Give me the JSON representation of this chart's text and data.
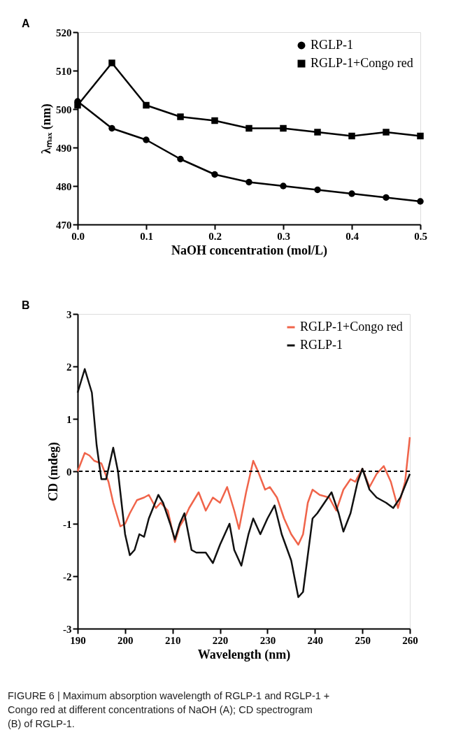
{
  "chart_data": [
    {
      "type": "line",
      "xlabel": "NaOH concentration (mol/L)",
      "ylabel": "λₘₐₓ (nm)",
      "annotations": [
        "A"
      ],
      "x": [
        0,
        0.05,
        0.1,
        0.15,
        0.2,
        0.25,
        0.3,
        0.35,
        0.4,
        0.45,
        0.5
      ],
      "series": [
        {
          "name": "RGLP-1",
          "color": "#000000",
          "marker": "circle",
          "values": [
            502,
            495,
            492,
            487,
            483,
            481,
            480,
            479,
            478,
            477,
            476
          ]
        },
        {
          "name": "RGLP-1+Congo red",
          "color": "#000000",
          "marker": "square",
          "values": [
            501,
            512,
            501,
            498,
            497,
            495,
            495,
            494,
            493,
            494,
            493
          ]
        }
      ],
      "xlim": [
        0,
        0.5
      ],
      "xticks": [
        {
          "value": 0,
          "label": "0.0"
        },
        0.1,
        0.2,
        0.3,
        0.4,
        0.5
      ],
      "ylim": [
        470,
        520
      ],
      "yticks": [
        470,
        480,
        490,
        500,
        510,
        520
      ],
      "grid": false,
      "legend": "top right",
      "line_style": "solid"
    },
    {
      "type": "line",
      "xlabel": "Wavelength (nm)",
      "ylabel": "CD (mdeg)",
      "annotations": [
        "B",
        "FIGURE 6 | Maximum absorption wavelength of RGLP-1 and RGLP-1 + Congo red at different concentrations of NaOH (A); CD spectrogram (B) of RGLP-1."
      ],
      "series": [
        {
          "name": "RGLP-1+Congo red",
          "color": "#f0644a",
          "x": [
            190,
            191.5,
            192.5,
            193.5,
            195,
            196.5,
            197.5,
            199,
            200,
            201,
            202.5,
            204,
            205,
            206.5,
            207.5,
            209,
            210.5,
            211.5,
            212.5,
            213.5,
            215.5,
            217,
            218.5,
            220,
            221.5,
            223,
            224,
            225.5,
            227,
            228,
            229.5,
            230.5,
            232,
            233.5,
            235,
            236.5,
            237.5,
            238.5,
            239.5,
            241,
            243,
            244.5,
            246,
            247.5,
            248.5,
            250,
            251.5,
            253,
            254.5,
            256,
            257.5,
            259,
            260
          ],
          "values": [
            0,
            0.35,
            0.3,
            0.2,
            0.15,
            -0.2,
            -0.6,
            -1.05,
            -1.0,
            -0.8,
            -0.55,
            -0.5,
            -0.45,
            -0.7,
            -0.6,
            -0.75,
            -1.35,
            -1.05,
            -0.9,
            -0.7,
            -0.4,
            -0.75,
            -0.5,
            -0.6,
            -0.3,
            -0.75,
            -1.1,
            -0.4,
            0.2,
            0.0,
            -0.35,
            -0.3,
            -0.5,
            -0.9,
            -1.2,
            -1.4,
            -1.2,
            -0.6,
            -0.35,
            -0.45,
            -0.5,
            -0.75,
            -0.35,
            -0.15,
            -0.2,
            0.05,
            -0.3,
            -0.05,
            0.1,
            -0.2,
            -0.7,
            -0.2,
            0.65
          ]
        },
        {
          "name": "RGLP-1",
          "color": "#111111",
          "x": [
            190,
            191.5,
            193,
            194,
            195,
            196,
            197.5,
            198.5,
            200,
            201,
            202,
            203,
            204,
            205,
            207,
            208,
            209.5,
            210.5,
            211.5,
            212.5,
            214,
            215,
            217,
            218.5,
            220,
            222,
            223,
            224.5,
            226,
            227,
            228.5,
            230,
            231.5,
            233,
            235,
            236.5,
            237.5,
            238.5,
            239.5,
            240.5,
            242,
            243.5,
            245,
            246,
            247.5,
            249,
            250,
            251.5,
            253,
            255,
            256.5,
            258,
            260
          ],
          "values": [
            1.5,
            1.95,
            1.5,
            0.5,
            -0.15,
            -0.15,
            0.45,
            0,
            -1.2,
            -1.6,
            -1.5,
            -1.2,
            -1.25,
            -0.9,
            -0.45,
            -0.6,
            -1.0,
            -1.3,
            -1.0,
            -0.8,
            -1.5,
            -1.55,
            -1.55,
            -1.75,
            -1.4,
            -1.0,
            -1.5,
            -1.8,
            -1.2,
            -0.9,
            -1.2,
            -0.9,
            -0.65,
            -1.2,
            -1.7,
            -2.4,
            -2.3,
            -1.6,
            -0.9,
            -0.8,
            -0.6,
            -0.4,
            -0.8,
            -1.15,
            -0.8,
            -0.2,
            0.05,
            -0.35,
            -0.5,
            -0.6,
            -0.7,
            -0.5,
            -0.05
          ]
        }
      ],
      "xlim": [
        190,
        260
      ],
      "xticks": [
        190,
        200,
        210,
        220,
        230,
        240,
        250,
        260
      ],
      "ylim": [
        -3,
        3
      ],
      "yticks": [
        -3,
        -2,
        -1,
        0,
        1,
        2,
        3
      ],
      "grid": false,
      "legend": "top right",
      "line_style": "solid",
      "marker": "none",
      "ref_lines": [
        {
          "axis": "y",
          "value": 0,
          "color": "#000000",
          "line_style": "dashed"
        }
      ]
    }
  ]
}
